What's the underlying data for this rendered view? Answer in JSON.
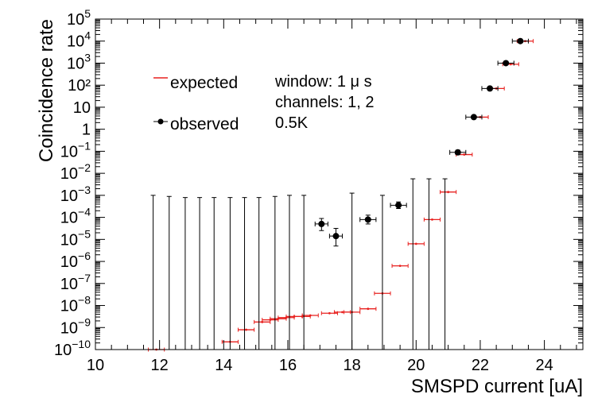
{
  "chart_data": {
    "type": "scatter",
    "xlabel": "SMSPD current [uA]",
    "ylabel": "Coincidence rate",
    "xlim": [
      10,
      25.2
    ],
    "ylim_log10": [
      -10,
      5
    ],
    "y_scale": "log",
    "grid": false,
    "legend_placement": "top-left",
    "x_ticks": [
      10,
      12,
      14,
      16,
      18,
      20,
      22,
      24
    ],
    "x_tick_labels": [
      "10",
      "12",
      "14",
      "16",
      "18",
      "20",
      "22",
      "24"
    ],
    "y_tick_exponents": [
      -10,
      -9,
      -8,
      -7,
      -6,
      -5,
      -4,
      -3,
      -2,
      -1,
      0,
      1,
      2,
      3,
      4,
      5
    ],
    "y_tick_labels": [
      {
        "type": "pow",
        "base": "10",
        "exp": "−10"
      },
      {
        "type": "pow",
        "base": "10",
        "exp": "−9"
      },
      {
        "type": "pow",
        "base": "10",
        "exp": "−8"
      },
      {
        "type": "pow",
        "base": "10",
        "exp": "−7"
      },
      {
        "type": "pow",
        "base": "10",
        "exp": "−6"
      },
      {
        "type": "pow",
        "base": "10",
        "exp": "−5"
      },
      {
        "type": "pow",
        "base": "10",
        "exp": "−4"
      },
      {
        "type": "pow",
        "base": "10",
        "exp": "−3"
      },
      {
        "type": "pow",
        "base": "10",
        "exp": "−2"
      },
      {
        "type": "pow",
        "base": "10",
        "exp": "−1"
      },
      {
        "type": "plain",
        "text": "1"
      },
      {
        "type": "plain",
        "text": "10"
      },
      {
        "type": "plain",
        "text": "10"
      },
      {
        "type": "plain",
        "text": "10"
      },
      {
        "type": "plain",
        "text": "10"
      },
      {
        "type": "plain",
        "text": "10"
      }
    ],
    "y_tick_labels_fixed": [
      {
        "type": "pow",
        "base": "10",
        "exp": "−10"
      },
      {
        "type": "pow",
        "base": "10",
        "exp": "−9"
      },
      {
        "type": "pow",
        "base": "10",
        "exp": "−8"
      },
      {
        "type": "pow",
        "base": "10",
        "exp": "−7"
      },
      {
        "type": "pow",
        "base": "10",
        "exp": "−6"
      },
      {
        "type": "pow",
        "base": "10",
        "exp": "−5"
      },
      {
        "type": "pow",
        "base": "10",
        "exp": "−4"
      },
      {
        "type": "pow",
        "base": "10",
        "exp": "−3"
      },
      {
        "type": "pow",
        "base": "10",
        "exp": "−2"
      },
      {
        "type": "pow",
        "base": "10",
        "exp": "−1"
      },
      {
        "type": "plain",
        "text": "1"
      },
      {
        "type": "plain",
        "text": "10"
      },
      {
        "type": "plain",
        "text": "10²"
      },
      {
        "type": "pow",
        "base": "10",
        "exp": "3"
      },
      {
        "type": "pow",
        "base": "10",
        "exp": "4"
      },
      {
        "type": "pow",
        "base": "10",
        "exp": "5"
      }
    ],
    "legend": [
      {
        "name": "expected",
        "style": "line",
        "color": "#e8211f"
      },
      {
        "name": "observed",
        "style": "marker-errorbar",
        "color": "#000000"
      }
    ],
    "annotations": [
      "window: 1 μ s",
      "channels: 1, 2",
      "0.5K"
    ],
    "series": [
      {
        "name": "expected",
        "color": "#e8211f",
        "points": [
          {
            "x": 11.9,
            "xerr": 0.25,
            "log10y": -10.0
          },
          {
            "x": 14.2,
            "xerr": 0.25,
            "log10y": -9.65
          },
          {
            "x": 14.7,
            "xerr": 0.25,
            "log10y": -9.1
          },
          {
            "x": 15.2,
            "xerr": 0.25,
            "log10y": -8.75
          },
          {
            "x": 15.45,
            "xerr": 0.25,
            "log10y": -8.65
          },
          {
            "x": 15.7,
            "xerr": 0.25,
            "log10y": -8.6
          },
          {
            "x": 15.95,
            "xerr": 0.25,
            "log10y": -8.55
          },
          {
            "x": 16.2,
            "xerr": 0.25,
            "log10y": -8.5
          },
          {
            "x": 16.45,
            "xerr": 0.25,
            "log10y": -8.5
          },
          {
            "x": 16.7,
            "xerr": 0.25,
            "log10y": -8.45
          },
          {
            "x": 17.3,
            "xerr": 0.25,
            "log10y": -8.35
          },
          {
            "x": 17.7,
            "xerr": 0.25,
            "log10y": -8.3
          },
          {
            "x": 18.0,
            "xerr": 0.25,
            "log10y": -8.3
          },
          {
            "x": 18.5,
            "xerr": 0.25,
            "log10y": -8.15
          },
          {
            "x": 18.95,
            "xerr": 0.25,
            "log10y": -7.45
          },
          {
            "x": 19.5,
            "xerr": 0.25,
            "log10y": -6.2
          },
          {
            "x": 20.0,
            "xerr": 0.25,
            "log10y": -5.2
          },
          {
            "x": 20.5,
            "xerr": 0.25,
            "log10y": -4.1
          },
          {
            "x": 21.0,
            "xerr": 0.25,
            "log10y": -2.85
          },
          {
            "x": 21.5,
            "xerr": 0.25,
            "log10y": -1.15
          },
          {
            "x": 22.0,
            "xerr": 0.25,
            "log10y": 0.55
          },
          {
            "x": 22.5,
            "xerr": 0.25,
            "log10y": 1.85
          },
          {
            "x": 22.95,
            "xerr": 0.25,
            "log10y": 2.95
          },
          {
            "x": 23.4,
            "xerr": 0.25,
            "log10y": 4.0
          }
        ]
      },
      {
        "name": "observed",
        "color": "#000000",
        "points": [
          {
            "x": 11.8,
            "xerr": 0,
            "log10y": -10.0,
            "log10y_hi": -3.0
          },
          {
            "x": 12.3,
            "xerr": 0,
            "log10y": -10.0,
            "log10y_hi": -3.05
          },
          {
            "x": 12.8,
            "xerr": 0,
            "log10y": -10.0,
            "log10y_hi": -3.1
          },
          {
            "x": 13.25,
            "xerr": 0,
            "log10y": -10.0,
            "log10y_hi": -3.1
          },
          {
            "x": 13.7,
            "xerr": 0,
            "log10y": -10.0,
            "log10y_hi": -3.1
          },
          {
            "x": 14.2,
            "xerr": 0,
            "log10y": -10.0,
            "log10y_hi": -3.1
          },
          {
            "x": 14.65,
            "xerr": 0,
            "log10y": -10.0,
            "log10y_hi": -3.1
          },
          {
            "x": 15.1,
            "xerr": 0,
            "log10y": -10.0,
            "log10y_hi": -3.1
          },
          {
            "x": 15.6,
            "xerr": 0,
            "log10y": -10.0,
            "log10y_hi": -3.05
          },
          {
            "x": 16.05,
            "xerr": 0,
            "log10y": -10.0,
            "log10y_hi": -3.0
          },
          {
            "x": 16.5,
            "xerr": 0,
            "log10y": -10.0,
            "log10y_hi": -3.0
          },
          {
            "x": 17.05,
            "xerr": 0.2,
            "log10y": -4.3,
            "log10y_lo": -4.6,
            "log10y_hi": -4.05
          },
          {
            "x": 17.5,
            "xerr": 0.2,
            "log10y": -4.85,
            "log10y_lo": -5.3,
            "log10y_hi": -4.5
          },
          {
            "x": 18.0,
            "xerr": 0,
            "log10y": -10.0,
            "log10y_hi": -2.9
          },
          {
            "x": 18.5,
            "xerr": 0.25,
            "log10y": -4.1,
            "log10y_lo": -4.3,
            "log10y_hi": -3.9
          },
          {
            "x": 18.95,
            "xerr": 0,
            "log10y": -10.0,
            "log10y_hi": -3.0
          },
          {
            "x": 19.45,
            "xerr": 0.25,
            "log10y": -3.45,
            "log10y_lo": -3.6,
            "log10y_hi": -3.3
          },
          {
            "x": 19.9,
            "xerr": 0,
            "log10y": -10.0,
            "log10y_hi": -2.25
          },
          {
            "x": 20.4,
            "xerr": 0,
            "log10y": -10.0,
            "log10y_hi": -2.25
          },
          {
            "x": 20.9,
            "xerr": 0,
            "log10y": -10.0,
            "log10y_hi": -2.25
          },
          {
            "x": 21.3,
            "xerr": 0.25,
            "log10y": -1.05,
            "log10y_lo": -1.15,
            "log10y_hi": -0.95
          },
          {
            "x": 21.8,
            "xerr": 0.25,
            "log10y": 0.55,
            "log10y_lo": 0.48,
            "log10y_hi": 0.62
          },
          {
            "x": 22.3,
            "xerr": 0.25,
            "log10y": 1.85,
            "log10y_lo": 1.8,
            "log10y_hi": 1.9
          },
          {
            "x": 22.8,
            "xerr": 0.25,
            "log10y": 3.0,
            "log10y_lo": 2.96,
            "log10y_hi": 3.04
          },
          {
            "x": 23.25,
            "xerr": 0.25,
            "log10y": 4.0,
            "log10y_lo": 3.97,
            "log10y_hi": 4.03
          }
        ]
      }
    ]
  }
}
